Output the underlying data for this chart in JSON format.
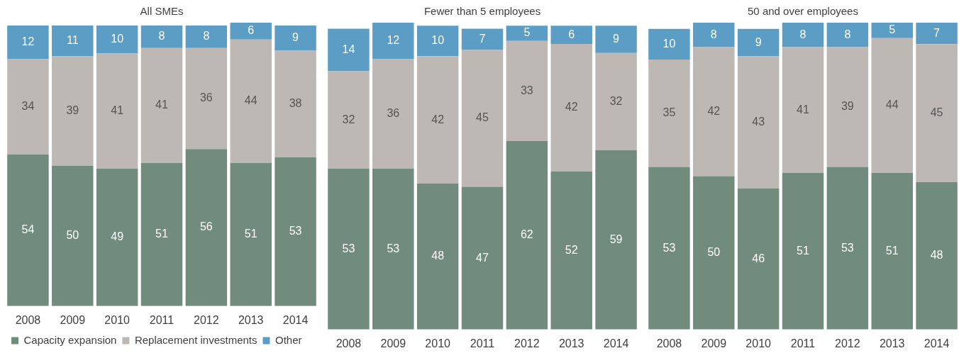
{
  "chart_data": [
    {
      "type": "bar",
      "title": "All SMEs",
      "categories": [
        "2008",
        "2009",
        "2010",
        "2011",
        "2012",
        "2013",
        "2014"
      ],
      "stacked": true,
      "data_labels": true,
      "grid": false,
      "tick_labels": "x",
      "legend": "bottom",
      "ylim": [
        0,
        101
      ],
      "series": [
        {
          "name": "Capacity expansion",
          "color": "#718c7d",
          "values": [
            54,
            50,
            49,
            51,
            56,
            51,
            53
          ]
        },
        {
          "name": "Replacement investments",
          "color": "#bdb8b3",
          "values": [
            34,
            39,
            41,
            41,
            36,
            44,
            38
          ]
        },
        {
          "name": "Other",
          "color": "#5b9dc5",
          "values": [
            12,
            11,
            10,
            8,
            8,
            6,
            9
          ]
        }
      ]
    },
    {
      "type": "bar",
      "title": "Fewer than 5 employees",
      "categories": [
        "2008",
        "2009",
        "2010",
        "2011",
        "2012",
        "2013",
        "2014"
      ],
      "stacked": true,
      "data_labels": true,
      "grid": false,
      "tick_labels": "x",
      "ylim": [
        0,
        101
      ],
      "series": [
        {
          "color": "#718c7d",
          "values": [
            53,
            53,
            48,
            47,
            62,
            52,
            59
          ]
        },
        {
          "color": "#bdb8b3",
          "values": [
            32,
            36,
            42,
            45,
            33,
            42,
            32
          ]
        },
        {
          "color": "#5b9dc5",
          "values": [
            14,
            12,
            10,
            7,
            5,
            6,
            9
          ]
        }
      ]
    },
    {
      "type": "bar",
      "title": "50 and over employees",
      "categories": [
        "2008",
        "2009",
        "2010",
        "2011",
        "2012",
        "2013",
        "2014"
      ],
      "stacked": true,
      "data_labels": true,
      "grid": false,
      "tick_labels": "x",
      "ylim": [
        0,
        100
      ],
      "series": [
        {
          "color": "#718c7d",
          "values": [
            53,
            50,
            46,
            51,
            53,
            51,
            48
          ]
        },
        {
          "color": "#bdb8b3",
          "values": [
            35,
            42,
            43,
            41,
            39,
            44,
            45
          ]
        },
        {
          "color": "#5b9dc5",
          "values": [
            10,
            8,
            9,
            8,
            8,
            5,
            7
          ]
        }
      ]
    }
  ]
}
